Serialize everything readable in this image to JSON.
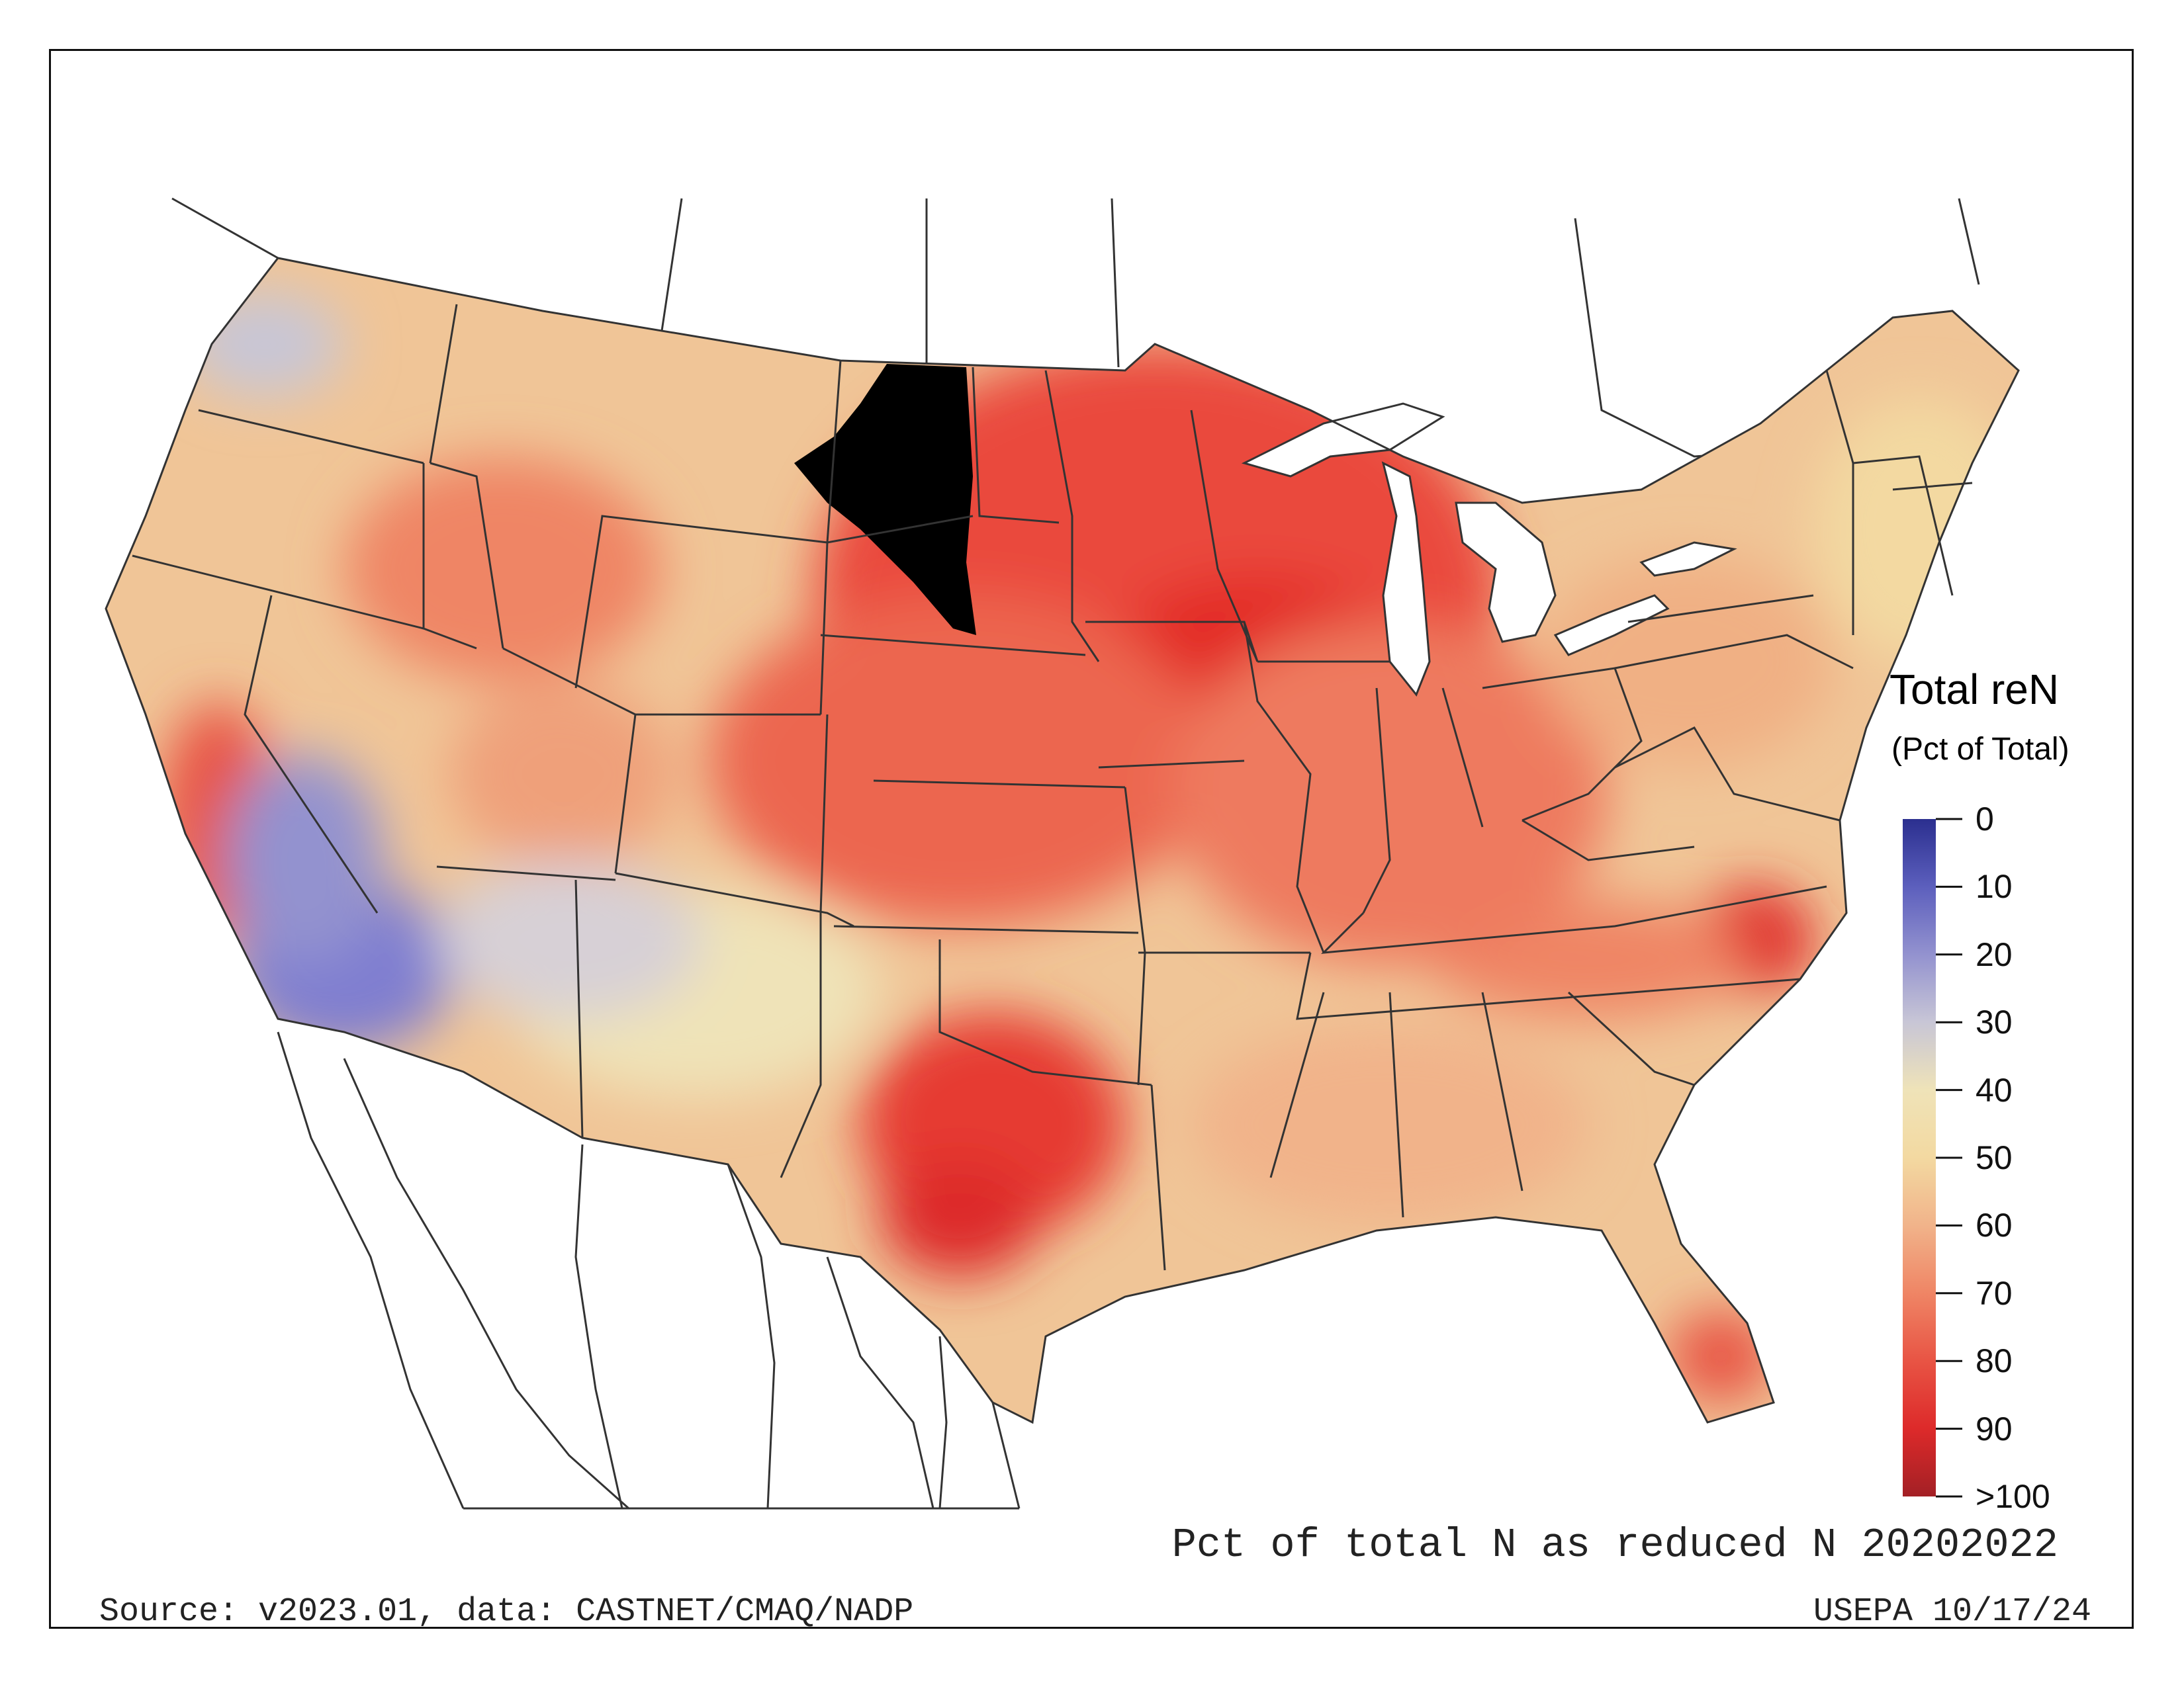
{
  "legend": {
    "title": "Total reN",
    "subtitle": "(Pct of Total)",
    "ticks": [
      "0",
      "10",
      "20",
      "30",
      "40",
      "50",
      "60",
      "70",
      "80",
      "90",
      ">100"
    ],
    "colors": [
      "#2b2f8f",
      "#5c5fbd",
      "#9392cf",
      "#c8c6d6",
      "#efe3b8",
      "#f3d9a1",
      "#f1b38a",
      "#ef8565",
      "#e85444",
      "#dd2a2a",
      "#a32025"
    ]
  },
  "caption": "Pct of total N as reduced N 20202022",
  "footer": {
    "source": "Source: v2023.01, data: CASTNET/CMAQ/NADP",
    "agency_date": "USEPA 10/17/24"
  },
  "colors": {
    "frame": "#111111",
    "border_lines": "#333333",
    "water": "#ffffff",
    "no_data": "#000000",
    "base_fill": "#f0c597"
  }
}
